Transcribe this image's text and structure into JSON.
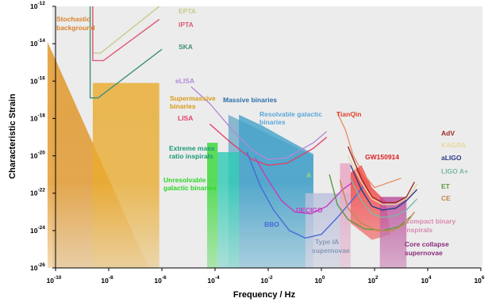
{
  "chart_data": {
    "type": "line",
    "xlabel": "Frequency / Hz",
    "ylabel": "Characteristic Strain",
    "xscale": "log",
    "yscale": "log",
    "xlim_exp": [
      -10,
      6
    ],
    "ylim_exp": [
      -26,
      -12
    ],
    "grid": false,
    "x_ticks": [
      {
        "b": "10",
        "e": "-10"
      },
      {
        "b": "10",
        "e": "-8"
      },
      {
        "b": "10",
        "e": "-6"
      },
      {
        "b": "10",
        "e": "-4"
      },
      {
        "b": "10",
        "e": "-2"
      },
      {
        "b": "10",
        "e": "0"
      },
      {
        "b": "10",
        "e": "2"
      },
      {
        "b": "10",
        "e": "4"
      },
      {
        "b": "10",
        "e": "6"
      }
    ],
    "y_ticks": [
      {
        "b": "10",
        "e": "-12"
      },
      {
        "b": "10",
        "e": "-14"
      },
      {
        "b": "10",
        "e": "-16"
      },
      {
        "b": "10",
        "e": "-18"
      },
      {
        "b": "10",
        "e": "-20"
      },
      {
        "b": "10",
        "e": "-22"
      },
      {
        "b": "10",
        "e": "-24"
      },
      {
        "b": "10",
        "e": "-26"
      }
    ],
    "series": [
      {
        "name": "EPTA",
        "color": "#c9c98a",
        "points": [
          [
            -8.6,
            -12
          ],
          [
            -8.6,
            -14.5
          ],
          [
            -8.3,
            -14.5
          ],
          [
            -6.1,
            -12
          ]
        ]
      },
      {
        "name": "IPTA",
        "color": "#e05a78",
        "points": [
          [
            -8.6,
            -12
          ],
          [
            -8.6,
            -14.9
          ],
          [
            -8.2,
            -14.9
          ],
          [
            -6.1,
            -12.7
          ]
        ]
      },
      {
        "name": "SKA",
        "color": "#3f8f7a",
        "points": [
          [
            -8.7,
            -12
          ],
          [
            -8.7,
            -16.9
          ],
          [
            -8.4,
            -16.9
          ],
          [
            -6.0,
            -14.3
          ]
        ]
      },
      {
        "name": "eLISA",
        "color": "#b28ad8",
        "points": [
          [
            -4.9,
            -16.3
          ],
          [
            -4.2,
            -17.2
          ],
          [
            -3.3,
            -18.7
          ],
          [
            -2.6,
            -19.7
          ],
          [
            -2.0,
            -20.2
          ],
          [
            -1.3,
            -20.1
          ],
          [
            -0.3,
            -19.3
          ],
          [
            0.2,
            -18.7
          ]
        ]
      },
      {
        "name": "LISA",
        "color": "#e0406a",
        "points": [
          [
            -4.2,
            -18.3
          ],
          [
            -3.4,
            -19.3
          ],
          [
            -2.6,
            -20.2
          ],
          [
            -2.0,
            -20.5
          ],
          [
            -1.3,
            -20.4
          ],
          [
            -0.3,
            -19.6
          ],
          [
            0.2,
            -19.0
          ]
        ]
      },
      {
        "name": "TianQin",
        "color": "#e8906a",
        "points": [
          [
            0.6,
            -17.7
          ],
          [
            0.9,
            -18.6
          ],
          [
            1.2,
            -20.0
          ],
          [
            1.6,
            -21.0
          ],
          [
            2.0,
            -21.7
          ],
          [
            2.4,
            -21.5
          ],
          [
            3.0,
            -21.2
          ]
        ]
      },
      {
        "name": "DECIGO",
        "color": "#c23cc0",
        "points": [
          [
            -2.5,
            -20.1
          ],
          [
            -2.0,
            -21.3
          ],
          [
            -1.5,
            -22.4
          ],
          [
            -1.0,
            -23.0
          ],
          [
            -0.4,
            -23.1
          ],
          [
            0.2,
            -22.7
          ],
          [
            0.8,
            -21.8
          ],
          [
            1.2,
            -21.4
          ]
        ]
      },
      {
        "name": "BBO",
        "color": "#4a6ad8",
        "points": [
          [
            -2.8,
            -19.8
          ],
          [
            -2.3,
            -21.6
          ],
          [
            -1.8,
            -22.9
          ],
          [
            -1.2,
            -24.0
          ],
          [
            -0.6,
            -24.4
          ],
          [
            0.0,
            -24.2
          ],
          [
            0.6,
            -23.3
          ],
          [
            1.2,
            -22.3
          ],
          [
            1.6,
            -21.6
          ]
        ]
      },
      {
        "name": "AdV",
        "color": "#9a2a2a",
        "points": [
          [
            1.0,
            -19.5
          ],
          [
            1.5,
            -21.2
          ],
          [
            1.9,
            -22.2
          ],
          [
            2.3,
            -22.5
          ],
          [
            2.8,
            -22.5
          ],
          [
            3.2,
            -22.2
          ],
          [
            3.5,
            -21.4
          ]
        ]
      },
      {
        "name": "KAGRA",
        "color": "#e8d8a0",
        "points": [
          [
            1.0,
            -20.0
          ],
          [
            1.5,
            -21.4
          ],
          [
            1.9,
            -22.3
          ],
          [
            2.3,
            -22.6
          ],
          [
            2.8,
            -22.6
          ],
          [
            3.3,
            -22.2
          ],
          [
            3.6,
            -21.5
          ]
        ]
      },
      {
        "name": "aLIGO",
        "color": "#2a3a8a",
        "points": [
          [
            1.1,
            -20.5
          ],
          [
            1.5,
            -21.8
          ],
          [
            1.9,
            -22.7
          ],
          [
            2.3,
            -22.9
          ],
          [
            2.8,
            -22.8
          ],
          [
            3.2,
            -22.4
          ],
          [
            3.6,
            -21.8
          ]
        ]
      },
      {
        "name": "LIGO A+",
        "color": "#7ab8a8",
        "points": [
          [
            1.1,
            -21.2
          ],
          [
            1.5,
            -22.4
          ],
          [
            1.9,
            -23.1
          ],
          [
            2.3,
            -23.3
          ],
          [
            2.8,
            -23.2
          ],
          [
            3.2,
            -22.9
          ],
          [
            3.6,
            -22.3
          ]
        ]
      },
      {
        "name": "ET",
        "color": "#5a9a3a",
        "points": [
          [
            0.3,
            -21.0
          ],
          [
            0.6,
            -22.6
          ],
          [
            1.0,
            -23.4
          ],
          [
            1.6,
            -23.9
          ],
          [
            2.3,
            -24.0
          ],
          [
            2.9,
            -23.8
          ],
          [
            3.4,
            -23.2
          ]
        ]
      },
      {
        "name": "CE",
        "color": "#c08a4a",
        "points": [
          [
            0.7,
            -21.3
          ],
          [
            1.0,
            -22.8
          ],
          [
            1.5,
            -23.6
          ],
          [
            2.1,
            -24.0
          ],
          [
            2.7,
            -24.0
          ],
          [
            3.2,
            -23.6
          ],
          [
            3.5,
            -23.0
          ]
        ]
      }
    ],
    "sources": [
      {
        "name": "Stochastic background",
        "color": "#e0901a",
        "points": [
          [
            -10.3,
            -13.9
          ],
          [
            -6.5,
            -26
          ],
          [
            -10.3,
            -26
          ]
        ]
      },
      {
        "name": "Supermassive binaries",
        "color": "#e8a826",
        "points": [
          [
            -8.6,
            -16.1
          ],
          [
            -6.1,
            -16.1
          ],
          [
            -6.1,
            -26
          ],
          [
            -8.6,
            -26
          ]
        ]
      },
      {
        "name": "Massive binaries",
        "color": "#6aa7c8",
        "points": [
          [
            -3.5,
            -17.8
          ],
          [
            -0.3,
            -20.0
          ],
          [
            -0.3,
            -26
          ],
          [
            -3.5,
            -26
          ]
        ]
      },
      {
        "name": "Resolvable galactic binaries",
        "color": "#3c9fc8",
        "points": [
          [
            -3.1,
            -17.8
          ],
          [
            -2.2,
            -18.4
          ],
          [
            -1.2,
            -19.2
          ],
          [
            -0.3,
            -19.9
          ],
          [
            -0.3,
            -26
          ],
          [
            -3.1,
            -26
          ]
        ]
      },
      {
        "name": "Extreme mass ratio inspirals",
        "color": "#20c8b0",
        "points": [
          [
            -3.9,
            -19.8
          ],
          [
            -3.1,
            -19.8
          ],
          [
            -3.1,
            -26
          ],
          [
            -3.9,
            -26
          ]
        ]
      },
      {
        "name": "Unresolvable galactic binaries",
        "color": "#2ad62a",
        "points": [
          [
            -4.3,
            -19.3
          ],
          [
            -3.9,
            -19.3
          ],
          [
            -3.9,
            -26
          ],
          [
            -4.3,
            -26
          ]
        ]
      },
      {
        "name": "Type IA supernovae",
        "color": "#b0b8d8",
        "points": [
          [
            -0.6,
            -22.0
          ],
          [
            1.1,
            -22.0
          ],
          [
            1.1,
            -26
          ],
          [
            -0.6,
            -26
          ]
        ]
      },
      {
        "name": "GW150914",
        "color": "#f23030",
        "points": [
          [
            1.1,
            -20.9
          ],
          [
            1.5,
            -20.5
          ],
          [
            1.9,
            -21.7
          ],
          [
            2.4,
            -22.4
          ],
          [
            2.6,
            -24.2
          ],
          [
            1.9,
            -24.5
          ],
          [
            1.1,
            -23.6
          ]
        ]
      },
      {
        "name": "Compact binary inspirals",
        "color": "#e8a0c0",
        "points": [
          [
            0.7,
            -20.4
          ],
          [
            1.1,
            -20.4
          ],
          [
            1.1,
            -26
          ],
          [
            0.7,
            -26
          ]
        ]
      },
      {
        "name": "Core collapse supernovae",
        "color": "#b02a8a",
        "points": [
          [
            2.2,
            -22.2
          ],
          [
            3.2,
            -22.2
          ],
          [
            3.2,
            -26
          ],
          [
            2.2,
            -26
          ]
        ]
      }
    ],
    "labels": [
      {
        "text": "EPTA",
        "color": "#c9c98a"
      },
      {
        "text": "IPTA",
        "color": "#e05a78"
      },
      {
        "text": "SKA",
        "color": "#3f8f7a"
      },
      {
        "text": "Stochastic",
        "color": "#d9822b"
      },
      {
        "text": "background",
        "color": "#d9822b"
      },
      {
        "text": "eLISA",
        "color": "#b28ad8"
      },
      {
        "text": "Supermassive",
        "color": "#d99a1a"
      },
      {
        "text": "binaries",
        "color": "#d99a1a"
      },
      {
        "text": "Massive binaries",
        "color": "#2b6ea8"
      },
      {
        "text": "LISA",
        "color": "#e0406a"
      },
      {
        "text": "Resolvable galactic",
        "color": "#5aa8d8"
      },
      {
        "text": "binaries",
        "color": "#5aa8d8"
      },
      {
        "text": "TianQin",
        "color": "#e0402a"
      },
      {
        "text": "Extreme mass",
        "color": "#1a9a78"
      },
      {
        "text": "ratio inspirals",
        "color": "#1a9a78"
      },
      {
        "text": "Unresolvable",
        "color": "#2ad62a"
      },
      {
        "text": "galactic binaries",
        "color": "#2ad62a"
      },
      {
        "text": "GW150914",
        "color": "#e02020"
      },
      {
        "text": "AdV",
        "color": "#9a2a2a"
      },
      {
        "text": "KAGRA",
        "color": "#e8d8a0"
      },
      {
        "text": "aLIGO",
        "color": "#2a3a8a"
      },
      {
        "text": "LIGO A+",
        "color": "#7ab8a8"
      },
      {
        "text": "ET",
        "color": "#5a9a3a"
      },
      {
        "text": "CE",
        "color": "#c08a4a"
      },
      {
        "text": "A",
        "color": "#9ad878"
      },
      {
        "text": "DECIGO",
        "color": "#c23cc0"
      },
      {
        "text": "BBO",
        "color": "#4a6ad8"
      },
      {
        "text": "Type IA",
        "color": "#8898b8"
      },
      {
        "text": "supernovae",
        "color": "#8898b8"
      },
      {
        "text": "Compact binary",
        "color": "#d88ab0"
      },
      {
        "text": "inspirals",
        "color": "#d88ab0"
      },
      {
        "text": "Core collapse",
        "color": "#8a2a7a"
      },
      {
        "text": "supernovae",
        "color": "#8a2a7a"
      }
    ]
  }
}
